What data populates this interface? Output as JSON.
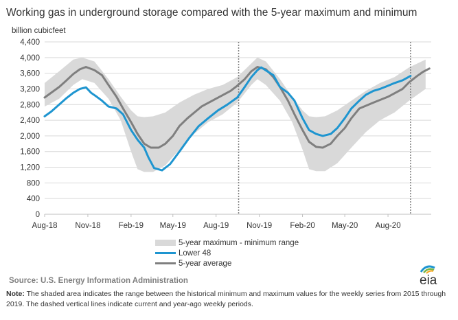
{
  "title": "Working gas in underground storage compared with the 5-year maximum and minimum",
  "unit_label": "billion cubicfeet",
  "legend": {
    "band": "5-year maximum - minimum range",
    "lower48": "Lower 48",
    "avg": "5-year average"
  },
  "source": "Source:  U.S. Energy Information Administration",
  "note_label": "Note:",
  "note_text": " The shaded area indicates the range between the historical minimum and maximum values for the weekly series from 2015 through 2019. The dashed vertical lines indicate current and year-ago weekly periods.",
  "logo_text": "eia",
  "colors": {
    "band": "#d9d9d9",
    "lower48": "#1e95d0",
    "avg": "#7f7f7f",
    "grid": "#d9d9d9",
    "logo_blue": "#1e95d0",
    "logo_green": "#7ab648",
    "logo_orange": "#f7a61c"
  },
  "chart_data": {
    "type": "line",
    "title": "Working gas in underground storage compared with the 5-year maximum and minimum",
    "ylabel": "billion cubicfeet",
    "xlabel": "",
    "ylim": [
      0,
      4400
    ],
    "yticks": [
      0,
      400,
      800,
      1200,
      1600,
      2000,
      2400,
      2800,
      3200,
      3600,
      4000,
      4400
    ],
    "xlim": [
      "2018-08-01",
      "2020-11-01"
    ],
    "xticks": [
      {
        "date": "2018-08-01",
        "label": "Aug-18"
      },
      {
        "date": "2018-11-01",
        "label": "Nov-18"
      },
      {
        "date": "2019-02-01",
        "label": "Feb-19"
      },
      {
        "date": "2019-05-01",
        "label": "May-19"
      },
      {
        "date": "2019-08-01",
        "label": "Aug-19"
      },
      {
        "date": "2019-11-01",
        "label": "Nov-19"
      },
      {
        "date": "2020-02-01",
        "label": "Feb-20"
      },
      {
        "date": "2020-05-01",
        "label": "May-20"
      },
      {
        "date": "2020-08-01",
        "label": "Aug-20"
      }
    ],
    "grid": true,
    "legend_position": "bottom",
    "vlines": [
      "2019-09-18",
      "2020-09-18"
    ],
    "series": [
      {
        "name": "5-year maximum - minimum range",
        "type": "band",
        "x": [
          "2018-08-01",
          "2018-09-01",
          "2018-10-01",
          "2018-10-20",
          "2018-11-15",
          "2018-12-15",
          "2019-01-10",
          "2019-02-01",
          "2019-02-15",
          "2019-03-01",
          "2019-03-20",
          "2019-04-15",
          "2019-05-15",
          "2019-06-15",
          "2019-07-15",
          "2019-08-15",
          "2019-09-15",
          "2019-10-15",
          "2019-10-28",
          "2019-11-15",
          "2019-12-15",
          "2020-01-10",
          "2020-02-01",
          "2020-02-15",
          "2020-03-01",
          "2020-03-20",
          "2020-04-15",
          "2020-05-15",
          "2020-06-15",
          "2020-07-15",
          "2020-08-15",
          "2020-09-15",
          "2020-10-20"
        ],
        "high": [
          3350,
          3650,
          3950,
          4000,
          3900,
          3450,
          3000,
          2650,
          2500,
          2480,
          2500,
          2600,
          2850,
          3050,
          3200,
          3300,
          3500,
          3850,
          4000,
          3900,
          3450,
          3000,
          2650,
          2500,
          2480,
          2500,
          2650,
          2900,
          3150,
          3350,
          3500,
          3750,
          3950
        ],
        "low": [
          2750,
          2950,
          3300,
          3450,
          3350,
          2950,
          2400,
          1600,
          1150,
          1080,
          1080,
          1250,
          1650,
          2050,
          2350,
          2550,
          2850,
          3300,
          3450,
          3300,
          2900,
          2350,
          1650,
          1150,
          1100,
          1100,
          1300,
          1700,
          2100,
          2400,
          2600,
          2900,
          3200
        ]
      },
      {
        "name": "Lower 48",
        "x": [
          "2018-08-01",
          "2018-08-15",
          "2018-09-01",
          "2018-09-15",
          "2018-10-01",
          "2018-10-15",
          "2018-10-28",
          "2018-11-08",
          "2018-11-20",
          "2018-12-01",
          "2018-12-15",
          "2019-01-01",
          "2019-01-15",
          "2019-02-01",
          "2019-02-15",
          "2019-03-01",
          "2019-03-10",
          "2019-03-22",
          "2019-04-08",
          "2019-04-25",
          "2019-05-15",
          "2019-06-05",
          "2019-06-25",
          "2019-07-15",
          "2019-08-05",
          "2019-08-25",
          "2019-09-15",
          "2019-10-01",
          "2019-10-15",
          "2019-10-28",
          "2019-11-05",
          "2019-11-18",
          "2019-12-01",
          "2019-12-15",
          "2020-01-01",
          "2020-01-15",
          "2020-02-01",
          "2020-02-15",
          "2020-03-01",
          "2020-03-15",
          "2020-04-01",
          "2020-04-15",
          "2020-05-01",
          "2020-05-15",
          "2020-06-01",
          "2020-06-15",
          "2020-07-01",
          "2020-07-15",
          "2020-08-01",
          "2020-08-15",
          "2020-09-01",
          "2020-09-18"
        ],
        "values": [
          2500,
          2620,
          2800,
          2950,
          3100,
          3200,
          3240,
          3100,
          3000,
          2900,
          2750,
          2700,
          2550,
          2150,
          1900,
          1700,
          1450,
          1180,
          1120,
          1280,
          1600,
          1950,
          2250,
          2450,
          2650,
          2800,
          2980,
          3250,
          3500,
          3680,
          3750,
          3650,
          3550,
          3250,
          3100,
          2900,
          2450,
          2150,
          2050,
          2000,
          2050,
          2200,
          2450,
          2700,
          2900,
          3050,
          3150,
          3200,
          3280,
          3350,
          3420,
          3530
        ]
      },
      {
        "name": "5-year average",
        "x": [
          "2018-08-01",
          "2018-09-01",
          "2018-09-15",
          "2018-10-01",
          "2018-10-15",
          "2018-10-28",
          "2018-11-15",
          "2018-12-01",
          "2018-12-15",
          "2019-01-01",
          "2019-01-15",
          "2019-02-01",
          "2019-02-15",
          "2019-03-01",
          "2019-03-15",
          "2019-04-01",
          "2019-04-15",
          "2019-05-01",
          "2019-05-15",
          "2019-06-01",
          "2019-07-01",
          "2019-08-01",
          "2019-09-01",
          "2019-09-15",
          "2019-10-01",
          "2019-10-15",
          "2019-10-28",
          "2019-11-15",
          "2019-12-01",
          "2019-12-15",
          "2020-01-01",
          "2020-01-15",
          "2020-02-01",
          "2020-02-15",
          "2020-03-01",
          "2020-03-15",
          "2020-04-01",
          "2020-04-15",
          "2020-05-01",
          "2020-05-15",
          "2020-06-01",
          "2020-07-01",
          "2020-08-01",
          "2020-09-01",
          "2020-09-15",
          "2020-10-01",
          "2020-10-15",
          "2020-10-28"
        ],
        "values": [
          2980,
          3250,
          3400,
          3580,
          3700,
          3760,
          3680,
          3550,
          3300,
          3000,
          2700,
          2350,
          2050,
          1800,
          1700,
          1700,
          1800,
          2000,
          2250,
          2450,
          2750,
          2950,
          3150,
          3280,
          3450,
          3650,
          3760,
          3700,
          3500,
          3250,
          2900,
          2550,
          2150,
          1850,
          1720,
          1700,
          1800,
          2000,
          2200,
          2450,
          2700,
          2850,
          3000,
          3200,
          3370,
          3520,
          3640,
          3720
        ]
      }
    ]
  }
}
